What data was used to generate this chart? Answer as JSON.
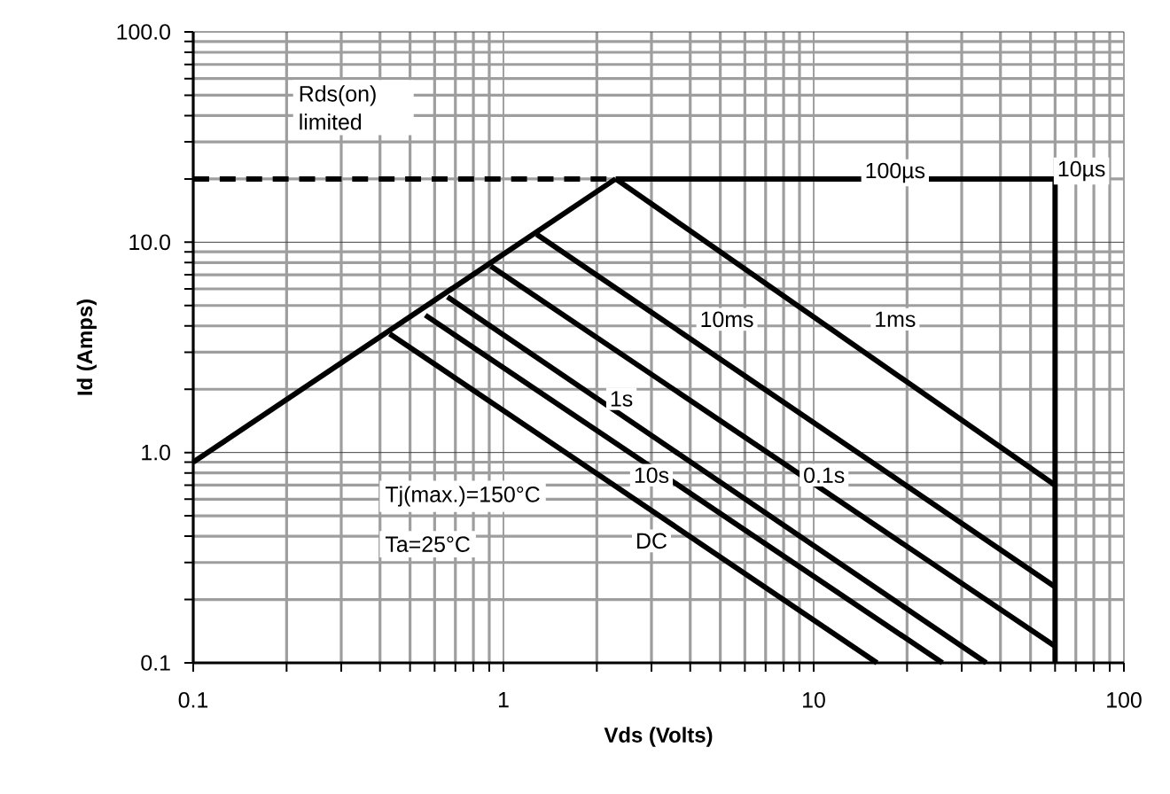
{
  "chart_data": {
    "type": "line",
    "xlabel": "Vds (Volts)",
    "ylabel": "Id (Amps)",
    "log": "xy",
    "xlim": [
      0.1,
      100
    ],
    "ylim": [
      0.1,
      100
    ],
    "xticks": [
      0.1,
      1,
      10,
      100
    ],
    "yticks": [
      {
        "value": 0.1,
        "label": "0.1"
      },
      {
        "value": 1,
        "label": "1.0"
      },
      {
        "value": 10,
        "label": "10.0"
      },
      {
        "value": 100,
        "label": "100.0"
      }
    ],
    "grid": true,
    "marker": "none",
    "line_style": "solid",
    "series": [
      {
        "color": "#000000",
        "x": [
          0.1,
          2.3
        ],
        "values": [
          0.9,
          20
        ]
      },
      {
        "color": "#000000",
        "x": [
          0.1,
          2.3
        ],
        "values": [
          20,
          20
        ],
        "line_style": "dashed"
      },
      {
        "name": "100µs",
        "color": "#000000",
        "x": [
          2.3,
          60
        ],
        "values": [
          20,
          20
        ]
      },
      {
        "name": "10µs",
        "color": "#000000",
        "x": [
          60,
          60
        ],
        "values": [
          20,
          0.1
        ]
      },
      {
        "name": "1ms",
        "color": "#000000",
        "x": [
          2.3,
          60
        ],
        "values": [
          20,
          0.7
        ]
      },
      {
        "name": "10ms",
        "color": "#000000",
        "x": [
          1.28,
          60
        ],
        "values": [
          10.9,
          0.23
        ]
      },
      {
        "name": "0.1s",
        "color": "#000000",
        "x": [
          0.91,
          60
        ],
        "values": [
          7.7,
          0.12
        ]
      },
      {
        "name": "1s",
        "color": "#000000",
        "x": [
          0.66,
          36
        ],
        "values": [
          5.5,
          0.1
        ]
      },
      {
        "name": "10s",
        "color": "#000000",
        "x": [
          0.56,
          26
        ],
        "values": [
          4.5,
          0.1
        ]
      },
      {
        "name": "DC",
        "color": "#000000",
        "x": [
          0.43,
          16
        ],
        "values": [
          3.67,
          0.1
        ]
      }
    ],
    "annotations": [
      "Rds(on) limited",
      "Tj(max.)=150°C",
      "Ta=25°C"
    ]
  }
}
